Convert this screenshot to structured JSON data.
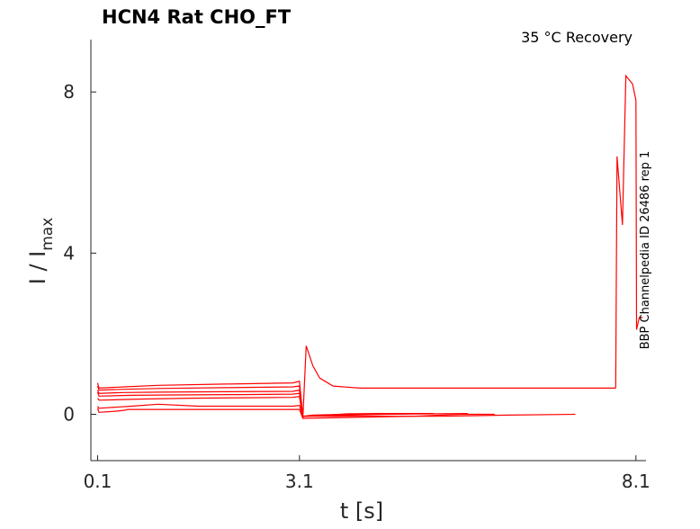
{
  "chart_data": {
    "type": "line",
    "title": "HCN4  Rat  CHO_FT",
    "condition_label": "35 °C  Recovery",
    "side_label": "BBP Channelpedia ID 26486 rep 1",
    "xlabel": "t [s]",
    "ylabel_main": "I / I",
    "ylabel_sub": "max",
    "xlim": [
      0.0,
      8.25
    ],
    "ylim": [
      -1.15,
      9.3
    ],
    "xticks": [
      0.1,
      3.1,
      8.1
    ],
    "xtick_labels": [
      "0.1",
      "3.1",
      "8.1"
    ],
    "yticks": [
      0,
      4,
      8
    ],
    "ytick_labels": [
      "0",
      "4",
      "8"
    ],
    "grid": false,
    "colors": {
      "trace": "#ff0000",
      "axis": "#262626",
      "text": "#000000"
    },
    "series": [
      {
        "x": [
          0.1,
          0.12,
          0.5,
          1.0,
          2.0,
          3.0,
          3.1,
          3.15,
          3.3,
          3.6,
          4.0
        ],
        "y": [
          0.78,
          0.65,
          0.68,
          0.72,
          0.75,
          0.78,
          0.82,
          -0.05,
          -0.02,
          -0.01,
          0.0
        ]
      },
      {
        "x": [
          0.1,
          0.12,
          0.5,
          1.0,
          2.0,
          3.0,
          3.1,
          3.15,
          3.8,
          4.3,
          4.8
        ],
        "y": [
          0.7,
          0.6,
          0.62,
          0.64,
          0.66,
          0.68,
          0.7,
          -0.05,
          0.01,
          0.02,
          0.02
        ]
      },
      {
        "x": [
          0.1,
          0.12,
          0.5,
          1.0,
          2.0,
          3.0,
          3.1,
          3.15,
          4.0,
          4.6,
          5.1
        ],
        "y": [
          0.6,
          0.52,
          0.54,
          0.55,
          0.56,
          0.57,
          0.6,
          -0.05,
          0.0,
          0.02,
          0.02
        ]
      },
      {
        "x": [
          0.1,
          0.12,
          0.6,
          1.2,
          2.2,
          3.0,
          3.1,
          3.15,
          4.4,
          5.0,
          5.6
        ],
        "y": [
          0.55,
          0.45,
          0.47,
          0.48,
          0.49,
          0.5,
          0.52,
          -0.05,
          0.0,
          0.01,
          0.02
        ]
      },
      {
        "x": [
          0.1,
          0.12,
          0.8,
          1.5,
          2.3,
          3.0,
          3.1,
          3.15,
          4.8,
          5.5,
          6.0
        ],
        "y": [
          0.4,
          0.35,
          0.38,
          0.4,
          0.41,
          0.42,
          0.44,
          -0.1,
          -0.05,
          0.0,
          0.0
        ]
      },
      {
        "x": [
          0.1,
          0.12,
          0.6,
          1.0,
          1.6,
          2.4,
          3.0,
          3.1,
          3.15,
          5.2,
          6.2,
          7.2
        ],
        "y": [
          0.2,
          0.15,
          0.2,
          0.25,
          0.2,
          0.2,
          0.2,
          0.22,
          -0.05,
          -0.05,
          -0.02,
          0.0
        ]
      },
      {
        "x": [
          0.1,
          0.12,
          0.4,
          0.5,
          0.55,
          0.8,
          3.0,
          3.1,
          3.15,
          3.2,
          3.3,
          3.4,
          3.5,
          3.6,
          4.0,
          5.0,
          6.0,
          7.0,
          7.8
        ],
        "y": [
          0.15,
          0.05,
          0.08,
          0.1,
          0.12,
          0.12,
          0.12,
          0.12,
          -0.1,
          1.7,
          1.2,
          0.9,
          0.8,
          0.7,
          0.65,
          0.65,
          0.65,
          0.65,
          0.65
        ]
      },
      {
        "x": [
          7.8,
          7.82,
          7.9,
          7.95,
          8.05,
          8.1
        ],
        "y": [
          0.65,
          6.4,
          4.7,
          8.4,
          8.2,
          7.8
        ]
      },
      {
        "x": [
          8.1,
          8.11,
          8.15,
          8.2
        ],
        "y": [
          7.8,
          2.1,
          2.4,
          2.4
        ]
      }
    ]
  }
}
